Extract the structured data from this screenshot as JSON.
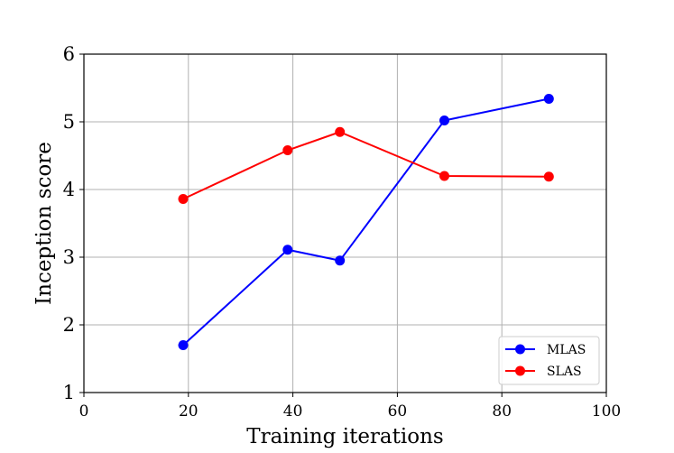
{
  "chart_data": {
    "type": "line",
    "title": "",
    "xlabel": "Training iterations",
    "ylabel": "Inception score",
    "xlim": [
      0,
      100
    ],
    "ylim": [
      1,
      6
    ],
    "xticks": [
      0,
      20,
      40,
      60,
      80,
      100
    ],
    "yticks": [
      1,
      2,
      3,
      4,
      5,
      6
    ],
    "grid": true,
    "legend": "bottom-right",
    "series": [
      {
        "name": "MLAS",
        "color": "#0000ff",
        "marker": "circle",
        "x": [
          19,
          39,
          49,
          69,
          89
        ],
        "y": [
          1.7,
          3.11,
          2.95,
          5.02,
          5.34
        ]
      },
      {
        "name": "SLAS",
        "color": "#ff0000",
        "marker": "circle",
        "x": [
          19,
          39,
          49,
          69,
          89
        ],
        "y": [
          3.86,
          4.58,
          4.85,
          4.2,
          4.19
        ]
      }
    ]
  }
}
